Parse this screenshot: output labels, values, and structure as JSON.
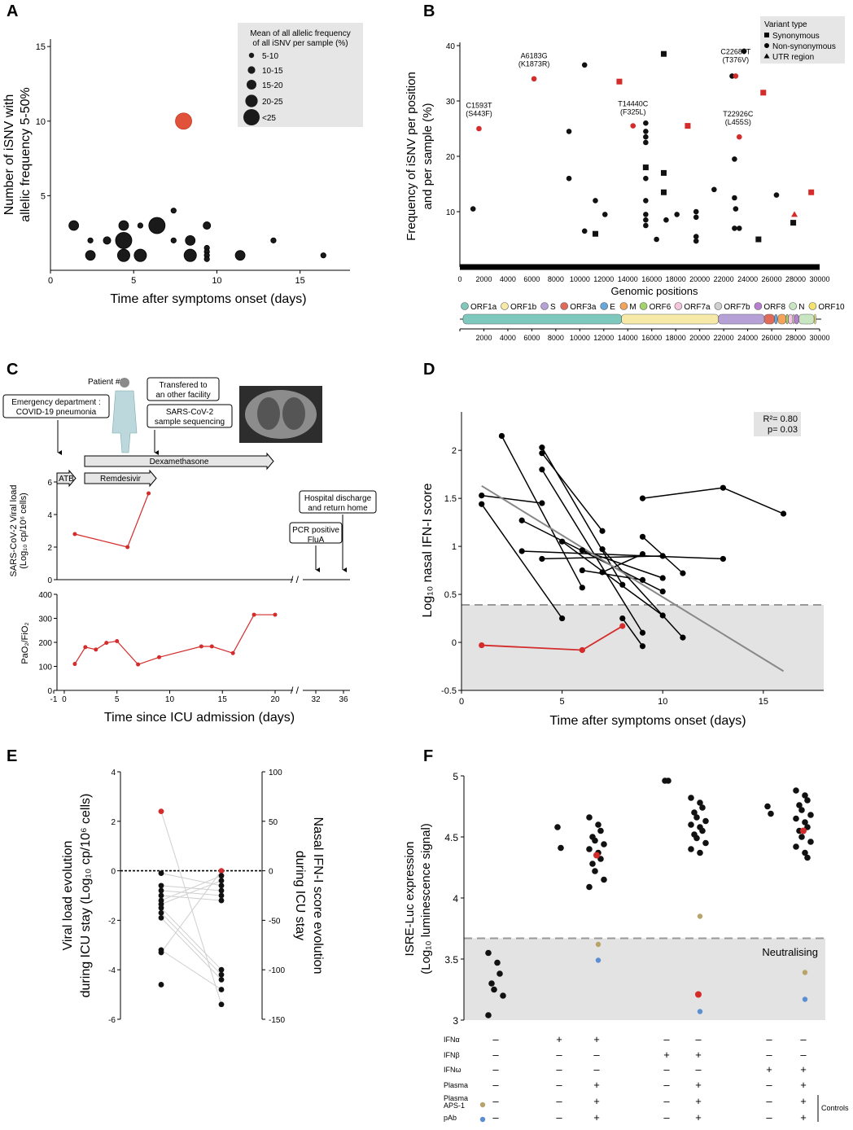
{
  "colors": {
    "red": "#d42b2b",
    "black": "#111111",
    "grey_band": "#e3e3e3",
    "grey_line": "#888888",
    "legend_bg": "#e6e6e6",
    "tan": "#b8a46a",
    "blue": "#5b8fd1",
    "orange_red": "#e0523a"
  },
  "chart_data": [
    {
      "panel": "A",
      "type": "scatter",
      "xlabel": "Time after symptoms onset (days)",
      "ylabel": [
        "Number of iSNV with",
        "allelic frequency 5-50%"
      ],
      "xlim": [
        0,
        18
      ],
      "ylim": [
        0,
        15.5
      ],
      "xticks": [
        0,
        5,
        10,
        15
      ],
      "yticks": [
        5,
        10,
        15
      ],
      "legend": {
        "title": [
          "Mean of all allelic frequency",
          "of all iSNV per sample (%)"
        ],
        "entries": [
          "5-10",
          "10-15",
          "15-20",
          "20-25",
          "<25"
        ]
      },
      "points": [
        {
          "x": 8,
          "y": 10,
          "size": 4,
          "red": true
        },
        {
          "x": 1.4,
          "y": 3,
          "size": 2
        },
        {
          "x": 2.4,
          "y": 2,
          "size": 0
        },
        {
          "x": 3.4,
          "y": 2,
          "size": 1
        },
        {
          "x": 4.4,
          "y": 3,
          "size": 2
        },
        {
          "x": 5.4,
          "y": 3,
          "size": 0
        },
        {
          "x": 6.4,
          "y": 3,
          "size": 4
        },
        {
          "x": 7.4,
          "y": 4,
          "size": 0
        },
        {
          "x": 7.4,
          "y": 2,
          "size": 0
        },
        {
          "x": 8.4,
          "y": 2,
          "size": 2
        },
        {
          "x": 9.4,
          "y": 3,
          "size": 1
        },
        {
          "x": 4.4,
          "y": 2,
          "size": 4
        },
        {
          "x": 2.4,
          "y": 1,
          "size": 2
        },
        {
          "x": 4.4,
          "y": 1,
          "size": 3
        },
        {
          "x": 5.4,
          "y": 1,
          "size": 3
        },
        {
          "x": 8.4,
          "y": 1,
          "size": 3
        },
        {
          "x": 9.4,
          "y": 1.5,
          "size": 0
        },
        {
          "x": 9.4,
          "y": 1.25,
          "size": 0
        },
        {
          "x": 9.4,
          "y": 1,
          "size": 0
        },
        {
          "x": 9.4,
          "y": 0.75,
          "size": 0
        },
        {
          "x": 11.4,
          "y": 1,
          "size": 2
        },
        {
          "x": 13.4,
          "y": 2,
          "size": 0
        },
        {
          "x": 16.4,
          "y": 1,
          "size": 0
        }
      ]
    },
    {
      "panel": "B",
      "type": "scatter",
      "xlabel": "Genomic positions",
      "ylabel": [
        "Frequency of iSNV per position",
        "and per sample (%)"
      ],
      "xlim": [
        0,
        30000
      ],
      "ylim": [
        0,
        40
      ],
      "xticks": [
        0,
        2000,
        4000,
        6000,
        8000,
        10000,
        12000,
        14000,
        16000,
        18000,
        20000,
        22000,
        24000,
        26000,
        28000,
        30000
      ],
      "yticks": [
        10,
        20,
        30,
        40
      ],
      "legend": {
        "title": "Variant type",
        "entries": [
          "Synonymous",
          "Non-synonymous",
          "UTR region"
        ]
      },
      "annotations": [
        {
          "label": [
            "C1593T",
            "(S443F)"
          ],
          "x": 1593,
          "y": 25.5
        },
        {
          "label": [
            "A6183G",
            "(K1873R)"
          ],
          "x": 6183,
          "y": 34.5
        },
        {
          "label": [
            "T14440C",
            "(F325L)"
          ],
          "x": 14440,
          "y": 25.8
        },
        {
          "label": [
            "C22689T",
            "(T376V)"
          ],
          "x": 23000,
          "y": 35.2
        },
        {
          "label": [
            "T22926C",
            "(L455S)"
          ],
          "x": 23200,
          "y": 24
        }
      ],
      "points": [
        {
          "x": 1100,
          "y": 10.5,
          "s": "c"
        },
        {
          "x": 1593,
          "y": 25,
          "s": "c",
          "red": true
        },
        {
          "x": 6183,
          "y": 34,
          "s": "c",
          "red": true
        },
        {
          "x": 9100,
          "y": 24.5,
          "s": "c"
        },
        {
          "x": 9100,
          "y": 16,
          "s": "c"
        },
        {
          "x": 10400,
          "y": 36.5,
          "s": "c"
        },
        {
          "x": 10400,
          "y": 6.5,
          "s": "c"
        },
        {
          "x": 11300,
          "y": 6,
          "s": "q"
        },
        {
          "x": 11300,
          "y": 12,
          "s": "c"
        },
        {
          "x": 12100,
          "y": 9.5,
          "s": "c"
        },
        {
          "x": 13300,
          "y": 33.5,
          "s": "q",
          "red": true
        },
        {
          "x": 14440,
          "y": 25.5,
          "s": "c",
          "red": true
        },
        {
          "x": 15500,
          "y": 26,
          "s": "c"
        },
        {
          "x": 15500,
          "y": 24.5,
          "s": "c"
        },
        {
          "x": 15500,
          "y": 23.5,
          "s": "c"
        },
        {
          "x": 15500,
          "y": 22.5,
          "s": "c"
        },
        {
          "x": 15500,
          "y": 18,
          "s": "q"
        },
        {
          "x": 15500,
          "y": 16,
          "s": "c"
        },
        {
          "x": 15500,
          "y": 12,
          "s": "c"
        },
        {
          "x": 15500,
          "y": 9.5,
          "s": "c"
        },
        {
          "x": 15500,
          "y": 8.5,
          "s": "c"
        },
        {
          "x": 15500,
          "y": 7.5,
          "s": "c"
        },
        {
          "x": 16400,
          "y": 5,
          "s": "c"
        },
        {
          "x": 17000,
          "y": 38.5,
          "s": "q"
        },
        {
          "x": 17000,
          "y": 17,
          "s": "q"
        },
        {
          "x": 17000,
          "y": 13.5,
          "s": "q"
        },
        {
          "x": 17200,
          "y": 8.5,
          "s": "c"
        },
        {
          "x": 18100,
          "y": 9.5,
          "s": "c"
        },
        {
          "x": 19000,
          "y": 25.5,
          "s": "q",
          "red": true
        },
        {
          "x": 19700,
          "y": 10,
          "s": "c"
        },
        {
          "x": 19700,
          "y": 9,
          "s": "c"
        },
        {
          "x": 19700,
          "y": 5.5,
          "s": "c"
        },
        {
          "x": 19700,
          "y": 4.7,
          "s": "c"
        },
        {
          "x": 21200,
          "y": 14,
          "s": "c"
        },
        {
          "x": 22700,
          "y": 34.5,
          "s": "c"
        },
        {
          "x": 22900,
          "y": 19.5,
          "s": "c"
        },
        {
          "x": 23000,
          "y": 34.5,
          "s": "c",
          "red": true
        },
        {
          "x": 23300,
          "y": 23.5,
          "s": "c",
          "red": true
        },
        {
          "x": 22900,
          "y": 12.5,
          "s": "c"
        },
        {
          "x": 23000,
          "y": 10.5,
          "s": "c"
        },
        {
          "x": 22900,
          "y": 7,
          "s": "c"
        },
        {
          "x": 23300,
          "y": 7,
          "s": "c"
        },
        {
          "x": 23700,
          "y": 39,
          "s": "c"
        },
        {
          "x": 24900,
          "y": 5,
          "s": "q"
        },
        {
          "x": 25300,
          "y": 31.5,
          "s": "q",
          "red": true
        },
        {
          "x": 26400,
          "y": 13,
          "s": "c"
        },
        {
          "x": 27800,
          "y": 8,
          "s": "q"
        },
        {
          "x": 27900,
          "y": 9.5,
          "s": "t",
          "red": true
        },
        {
          "x": 29300,
          "y": 13.5,
          "s": "q",
          "red": true
        }
      ],
      "genome": [
        {
          "name": "ORF1a",
          "start": 266,
          "end": 13483,
          "color": "#7ec8bd"
        },
        {
          "name": "ORF1b",
          "start": 13483,
          "end": 21555,
          "color": "#f7eaa8"
        },
        {
          "name": "S",
          "start": 21563,
          "end": 25384,
          "color": "#b6a1d6"
        },
        {
          "name": "ORF3a",
          "start": 25393,
          "end": 26220,
          "color": "#e06b5a"
        },
        {
          "name": "E",
          "start": 26245,
          "end": 26472,
          "color": "#6aa7d9"
        },
        {
          "name": "M",
          "start": 26523,
          "end": 27191,
          "color": "#f4a35a"
        },
        {
          "name": "ORF6",
          "start": 27202,
          "end": 27387,
          "color": "#a3d46b"
        },
        {
          "name": "ORF7a",
          "start": 27394,
          "end": 27759,
          "color": "#f5c4dd"
        },
        {
          "name": "ORF7b",
          "start": 27756,
          "end": 27887,
          "color": "#cfcfcf"
        },
        {
          "name": "ORF8",
          "start": 27894,
          "end": 28259,
          "color": "#b77fcf"
        },
        {
          "name": "N",
          "start": 28274,
          "end": 29533,
          "color": "#c8e6c2"
        },
        {
          "name": "ORF10",
          "start": 29558,
          "end": 29674,
          "color": "#f3e36e"
        }
      ]
    },
    {
      "panel": "C",
      "type": "line",
      "patient": "Patient #2",
      "xlabel": "Time since ICU admission (days)",
      "xticks": [
        "-1",
        "0",
        "5",
        "10",
        "15",
        "20",
        "32",
        "36"
      ],
      "boxes": [
        "Emergency department : COVID-19 pneumonia",
        "Transfered to an other facility",
        "SARS-CoV-2 sample sequencing",
        "Hospital discharge and return home",
        "PCR positive FluA"
      ],
      "box_lines": [
        [
          "Emergency department :",
          "COVID-19 pneumonia"
        ],
        [
          "Transfered to",
          "an other facility"
        ],
        [
          "SARS-CoV-2",
          "sample sequencing"
        ],
        [
          "Hospital discharge",
          "and return home"
        ],
        [
          "PCR positive",
          "FluA"
        ]
      ],
      "treatments": [
        "Dexamethasone",
        "ATB",
        "Remdesivir"
      ],
      "viral": {
        "ylabel": [
          "SARS-CoV-2 Viral load",
          "(Log₁₀ cp/10⁶ cells)"
        ],
        "ylim": [
          0,
          6
        ],
        "yticks": [
          0,
          2,
          4,
          6
        ],
        "x": [
          1,
          6,
          8
        ],
        "y": [
          2.8,
          2.0,
          5.3
        ]
      },
      "pao2": {
        "ylabel": "PaO₂/FiO₂",
        "ylim": [
          0,
          400
        ],
        "yticks": [
          0,
          100,
          200,
          300,
          400
        ],
        "x": [
          1,
          2,
          3,
          4,
          5,
          7,
          9,
          13,
          14,
          16,
          18,
          20
        ],
        "y": [
          110,
          180,
          170,
          198,
          205,
          108,
          138,
          183,
          183,
          155,
          315,
          315
        ]
      }
    },
    {
      "panel": "D",
      "type": "line",
      "xlabel": "Time after symptoms onset (days)",
      "ylabel": "Log₁₀ nasal IFN-I score",
      "xlim": [
        0,
        18
      ],
      "ylim": [
        -0.5,
        2.4
      ],
      "xticks": [
        0,
        5,
        10,
        15
      ],
      "yticks": [
        -0.5,
        0,
        0.5,
        1,
        1.5,
        2
      ],
      "threshold": 0.39,
      "stats": [
        "R²= 0.80",
        "p= 0.03"
      ],
      "regression": {
        "x": [
          1,
          16
        ],
        "y": [
          1.63,
          -0.3
        ]
      },
      "series": [
        {
          "x": [
            2,
            6
          ],
          "y": [
            2.15,
            0.57
          ]
        },
        {
          "x": [
            4,
            8
          ],
          "y": [
            2.03,
            0.6
          ]
        },
        {
          "x": [
            4,
            7
          ],
          "y": [
            1.97,
            1.16
          ]
        },
        {
          "x": [
            4,
            9
          ],
          "y": [
            1.8,
            0.1
          ]
        },
        {
          "x": [
            1,
            4
          ],
          "y": [
            1.53,
            1.45
          ]
        },
        {
          "x": [
            1,
            5
          ],
          "y": [
            1.44,
            0.25
          ]
        },
        {
          "x": [
            3,
            10
          ],
          "y": [
            1.27,
            0.53
          ]
        },
        {
          "x": [
            5,
            10
          ],
          "y": [
            1.05,
            0.28
          ]
        },
        {
          "x": [
            4,
            10
          ],
          "y": [
            0.87,
            0.9
          ]
        },
        {
          "x": [
            3,
            13
          ],
          "y": [
            0.95,
            0.87
          ]
        },
        {
          "x": [
            6,
            10
          ],
          "y": [
            0.96,
            0.67
          ]
        },
        {
          "x": [
            9,
            13,
            16
          ],
          "y": [
            1.5,
            1.61,
            1.34
          ]
        },
        {
          "x": [
            8,
            9
          ],
          "y": [
            0.25,
            -0.04
          ]
        },
        {
          "x": [
            7,
            11
          ],
          "y": [
            0.97,
            0.05
          ]
        },
        {
          "x": [
            9,
            11
          ],
          "y": [
            1.1,
            0.72
          ]
        },
        {
          "x": [
            6,
            9
          ],
          "y": [
            0.75,
            0.65
          ]
        },
        {
          "x": [
            7,
            9
          ],
          "y": [
            0.73,
            0.92
          ]
        },
        {
          "x": [
            1,
            6,
            8
          ],
          "y": [
            -0.03,
            -0.08,
            0.17
          ],
          "red": true
        }
      ]
    },
    {
      "panel": "E",
      "type": "scatter",
      "ylabel_left": [
        "Viral load evolution",
        "during ICU stay (Log₁₀ cp/10⁶ cells)"
      ],
      "ylabel_right": [
        "Nasal IFN-I score evolution",
        "during ICU stay"
      ],
      "left_ylim": [
        -6,
        4
      ],
      "left_yticks": [
        -6,
        -4,
        -2,
        0,
        2,
        4
      ],
      "right_ylim": [
        -150,
        100
      ],
      "right_yticks": [
        -150,
        -100,
        -50,
        0,
        50,
        100
      ],
      "viral_change": [
        2.4,
        -0.1,
        -0.6,
        -0.8,
        -1.0,
        -1.2,
        -1.35,
        -1.5,
        -1.7,
        -1.9,
        -3.2,
        -3.3,
        -4.6
      ],
      "ifn_change": [
        0,
        -5,
        -10,
        -15,
        -20,
        -25,
        -30,
        -100,
        -105,
        -110,
        -120,
        -135
      ],
      "red_index_viral": 0
    },
    {
      "panel": "F",
      "type": "scatter",
      "ylabel": [
        "ISRE-Luc expression",
        "(Log₁₀ luminescence signal)"
      ],
      "ylim": [
        3,
        5
      ],
      "yticks": [
        3,
        3.5,
        4,
        4.5,
        5
      ],
      "threshold": 3.67,
      "neutralising_label": "Neutralising",
      "controls_label": "Controls",
      "row_labels": [
        "IFNα",
        "IFNβ",
        "IFNω",
        "Plasma",
        "Plasma APS-1",
        "pAb"
      ],
      "row_marks": [
        [
          "–",
          "+",
          "+",
          "–",
          "–",
          "–",
          "–"
        ],
        [
          "–",
          "–",
          "–",
          "+",
          "+",
          "–",
          "–"
        ],
        [
          "–",
          "–",
          "–",
          "–",
          "–",
          "+",
          "+"
        ],
        [
          "–",
          "–",
          "+",
          "–",
          "+",
          "–",
          "+"
        ],
        [
          "–",
          "–",
          "+",
          "–",
          "+",
          "–",
          "+"
        ],
        [
          "–",
          "–",
          "+",
          "–",
          "+",
          "–",
          "+"
        ]
      ],
      "groups": [
        {
          "black": [
            3.55,
            3.47,
            3.38,
            3.3,
            3.25,
            3.2,
            3.04
          ]
        },
        {
          "black": [
            4.58,
            4.41
          ]
        },
        {
          "black": [
            4.66,
            4.6,
            4.55,
            4.5,
            4.47,
            4.44,
            4.4,
            4.37,
            4.32,
            4.28,
            4.22,
            4.15,
            4.09
          ],
          "red": 4.35,
          "tan": 3.62,
          "blue": 3.49
        },
        {
          "black": [
            4.96,
            4.96
          ]
        },
        {
          "black": [
            4.82,
            4.78,
            4.74,
            4.7,
            4.66,
            4.63,
            4.6,
            4.58,
            4.55,
            4.52,
            4.49,
            4.45,
            4.4,
            4.37
          ],
          "red": 3.21,
          "tan": 3.85,
          "blue": 3.07
        },
        {
          "black": [
            4.75,
            4.69
          ]
        },
        {
          "black": [
            4.88,
            4.84,
            4.8,
            4.76,
            4.72,
            4.68,
            4.65,
            4.62,
            4.58,
            4.55,
            4.5,
            4.46,
            4.42,
            4.37,
            4.33
          ],
          "red": 4.55,
          "tan": 3.39,
          "blue": 3.17
        }
      ]
    }
  ]
}
